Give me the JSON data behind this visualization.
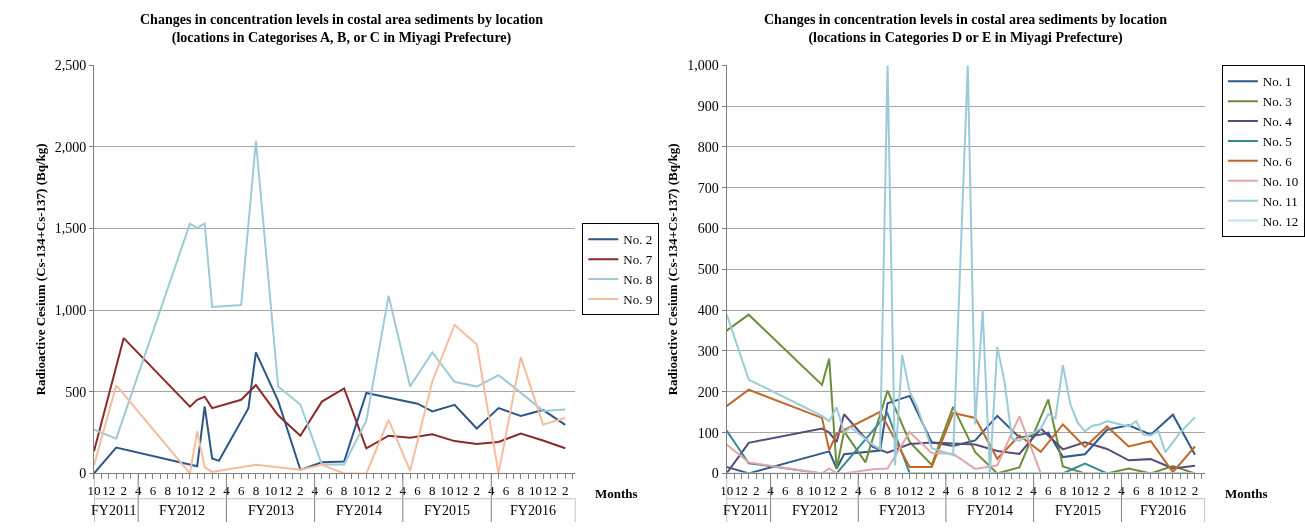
{
  "chart_data": [
    {
      "type": "line",
      "title": "Changes in concentration levels in costal area sediments by location\n(locations in Categorises A, B, or C in Miyagi Prefecture)",
      "xlabel": "Months",
      "ylabel": "Radioactive Cesium (Cs-134+Cs-137) (Bq/kg)",
      "legend": "right",
      "grid": "y",
      "xlim": [
        "2011-10-01",
        "2017-03-15"
      ],
      "ylim": [
        0,
        2500
      ],
      "yticks": [
        0,
        {
          "value": 500,
          "label": "500"
        },
        {
          "value": 1000,
          "label": "1,000"
        },
        {
          "value": 1500,
          "label": "1,500"
        },
        {
          "value": 2000,
          "label": "2,000"
        },
        {
          "value": 2500,
          "label": "2,500"
        }
      ],
      "xticks": [
        {
          "value": "2011-10",
          "label": "10"
        },
        {
          "value": "2011-11",
          "label": null
        },
        {
          "value": "2011-12",
          "label": "12"
        },
        {
          "value": "2012-01",
          "label": null
        },
        {
          "value": "2012-02",
          "label": "2"
        },
        {
          "value": "2012-03",
          "label": null
        },
        {
          "value": "2012-04",
          "label": "4"
        },
        {
          "value": "2012-05",
          "label": null
        },
        {
          "value": "2012-06",
          "label": "6"
        },
        {
          "value": "2012-07",
          "label": null
        },
        {
          "value": "2012-08",
          "label": "8"
        },
        {
          "value": "2012-09",
          "label": null
        },
        {
          "value": "2012-10",
          "label": "10"
        },
        {
          "value": "2012-11",
          "label": null
        },
        {
          "value": "2012-12",
          "label": "12"
        },
        {
          "value": "2013-01",
          "label": null
        },
        {
          "value": "2013-02",
          "label": "2"
        },
        {
          "value": "2013-03",
          "label": null
        },
        {
          "value": "2013-04",
          "label": "4"
        },
        {
          "value": "2013-05",
          "label": null
        },
        {
          "value": "2013-06",
          "label": "6"
        },
        {
          "value": "2013-07",
          "label": null
        },
        {
          "value": "2013-08",
          "label": "8"
        },
        {
          "value": "2013-09",
          "label": null
        },
        {
          "value": "2013-10",
          "label": "10"
        },
        {
          "value": "2013-11",
          "label": null
        },
        {
          "value": "2013-12",
          "label": "12"
        },
        {
          "value": "2014-01",
          "label": null
        },
        {
          "value": "2014-02",
          "label": "2"
        },
        {
          "value": "2014-03",
          "label": null
        },
        {
          "value": "2014-04",
          "label": "4"
        },
        {
          "value": "2014-05",
          "label": null
        },
        {
          "value": "2014-06",
          "label": "6"
        },
        {
          "value": "2014-07",
          "label": null
        },
        {
          "value": "2014-08",
          "label": "8"
        },
        {
          "value": "2014-09",
          "label": null
        },
        {
          "value": "2014-10",
          "label": "10"
        },
        {
          "value": "2014-11",
          "label": null
        },
        {
          "value": "2014-12",
          "label": "12"
        },
        {
          "value": "2015-01",
          "label": null
        },
        {
          "value": "2015-02",
          "label": "2"
        },
        {
          "value": "2015-03",
          "label": null
        },
        {
          "value": "2015-04",
          "label": "4"
        },
        {
          "value": "2015-05",
          "label": null
        },
        {
          "value": "2015-06",
          "label": "6"
        },
        {
          "value": "2015-07",
          "label": null
        },
        {
          "value": "2015-08",
          "label": "8"
        },
        {
          "value": "2015-09",
          "label": null
        },
        {
          "value": "2015-10",
          "label": "10"
        },
        {
          "value": "2015-11",
          "label": null
        },
        {
          "value": "2015-12",
          "label": "12"
        },
        {
          "value": "2016-01",
          "label": null
        },
        {
          "value": "2016-02",
          "label": "2"
        },
        {
          "value": "2016-03",
          "label": null
        },
        {
          "value": "2016-04",
          "label": "4"
        },
        {
          "value": "2016-05",
          "label": null
        },
        {
          "value": "2016-06",
          "label": "6"
        },
        {
          "value": "2016-07",
          "label": null
        },
        {
          "value": "2016-08",
          "label": "8"
        },
        {
          "value": "2016-09",
          "label": null
        },
        {
          "value": "2016-10",
          "label": "10"
        },
        {
          "value": "2016-11",
          "label": null
        },
        {
          "value": "2016-12",
          "label": "12"
        },
        {
          "value": "2017-01",
          "label": null
        },
        {
          "value": "2017-02",
          "label": "2"
        },
        {
          "value": "2017-03",
          "label": null
        }
      ],
      "x2lim": [
        "2011-10-01",
        "2017-03-15"
      ],
      "x2ticks": [
        {
          "value": "2011-10-01",
          "label": null
        },
        {
          "value": "2011-12-20",
          "label": "FY2011"
        },
        {
          "value": "2012-04-01",
          "label": null
        },
        {
          "value": "2012-10-01",
          "label": "FY2012"
        },
        {
          "value": "2013-04-01",
          "label": null
        },
        {
          "value": "2013-10-01",
          "label": "FY2013"
        },
        {
          "value": "2014-04-01",
          "label": null
        },
        {
          "value": "2014-10-01",
          "label": "FY2014"
        },
        {
          "value": "2015-04-01",
          "label": null
        },
        {
          "value": "2015-10-01",
          "label": "FY2015"
        },
        {
          "value": "2016-04-01",
          "label": null
        },
        {
          "value": "2016-09-20",
          "label": "FY2016"
        }
      ],
      "series": [
        {
          "name": "No. 2",
          "color": "#2e5688",
          "x": [
            "2011-10",
            "2012-01",
            "2012-12",
            "2013-01",
            "2013-02",
            "2013-03",
            "2013-07",
            "2013-08",
            "2013-11",
            "2014-02",
            "2014-05",
            "2014-08",
            "2014-11",
            "2015-06",
            "2015-08",
            "2015-11",
            "2016-02",
            "2016-05",
            "2016-08",
            "2016-11",
            "2017-02"
          ],
          "values": [
            0,
            158,
            44,
            411,
            92,
            77,
            400,
            741,
            444,
            22,
            68,
            73,
            493,
            427,
            380,
            420,
            275,
            400,
            352,
            389,
            297
          ]
        },
        {
          "name": "No. 7",
          "color": "#8b2a2a",
          "x": [
            "2011-10",
            "2012-02",
            "2012-11",
            "2012-12",
            "2013-01",
            "2013-02",
            "2013-06",
            "2013-08",
            "2013-11",
            "2014-02",
            "2014-05",
            "2014-08",
            "2014-11",
            "2015-02",
            "2015-05",
            "2015-08",
            "2015-11",
            "2016-02",
            "2016-05",
            "2016-08",
            "2016-11",
            "2017-02"
          ],
          "values": [
            136,
            829,
            409,
            451,
            470,
            400,
            451,
            541,
            356,
            231,
            440,
            521,
            154,
            231,
            218,
            240,
            198,
            180,
            193,
            244,
            202,
            154
          ]
        },
        {
          "name": "No. 8",
          "color": "#9ecad6",
          "x": [
            "2011-10",
            "2012-01",
            "2012-11",
            "2012-12",
            "2013-01",
            "2013-02",
            "2013-06",
            "2013-08",
            "2013-11",
            "2014-02",
            "2014-05",
            "2014-08",
            "2014-11",
            "2015-02",
            "2015-05",
            "2015-08",
            "2015-11",
            "2016-02",
            "2016-05",
            "2016-08",
            "2016-11",
            "2017-02"
          ],
          "values": [
            268,
            213,
            1530,
            1504,
            1530,
            1020,
            1031,
            2038,
            532,
            422,
            55,
            55,
            323,
            1088,
            532,
            741,
            561,
            532,
            602,
            495,
            383,
            391
          ]
        },
        {
          "name": "No. 9",
          "color": "#f5bda0",
          "x": [
            "2011-10",
            "2012-01",
            "2012-11",
            "2012-12",
            "2013-01",
            "2013-02",
            "2013-08",
            "2014-02",
            "2014-05",
            "2014-08",
            "2014-11",
            "2015-02",
            "2015-05",
            "2015-08",
            "2015-11",
            "2016-02",
            "2016-05",
            "2016-08",
            "2016-11",
            "2017-02"
          ],
          "values": [
            48,
            539,
            0,
            257,
            37,
            9,
            53,
            22,
            53,
            0,
            0,
            328,
            15,
            565,
            910,
            789,
            0,
            712,
            299,
            339
          ]
        }
      ]
    },
    {
      "type": "line",
      "title": "Changes in concentration levels in costal area sediments by location\n(locations in Categories D or E in Miyagi Prefecture)",
      "xlabel": "Months",
      "ylabel": "Radioactive Cesium (Cs-134+Cs-137) (Bq/kg)",
      "legend": "top right",
      "grid": "y",
      "xlim": [
        "2011-10-01",
        "2017-03-15"
      ],
      "ylim": [
        0,
        1000
      ],
      "yticks": [
        0,
        100,
        200,
        300,
        400,
        500,
        600,
        700,
        800,
        900,
        {
          "value": 1000,
          "label": "1,000"
        }
      ],
      "xticks": [
        {
          "value": "2011-10",
          "label": "10"
        },
        {
          "value": "2011-11",
          "label": null
        },
        {
          "value": "2011-12",
          "label": "12"
        },
        {
          "value": "2012-01",
          "label": null
        },
        {
          "value": "2012-02",
          "label": "2"
        },
        {
          "value": "2012-03",
          "label": null
        },
        {
          "value": "2012-04",
          "label": "4"
        },
        {
          "value": "2012-05",
          "label": null
        },
        {
          "value": "2012-06",
          "label": "6"
        },
        {
          "value": "2012-07",
          "label": null
        },
        {
          "value": "2012-08",
          "label": "8"
        },
        {
          "value": "2012-09",
          "label": null
        },
        {
          "value": "2012-10",
          "label": "10"
        },
        {
          "value": "2012-11",
          "label": null
        },
        {
          "value": "2012-12",
          "label": "12"
        },
        {
          "value": "2013-01",
          "label": null
        },
        {
          "value": "2013-02",
          "label": "2"
        },
        {
          "value": "2013-03",
          "label": null
        },
        {
          "value": "2013-04",
          "label": "4"
        },
        {
          "value": "2013-05",
          "label": null
        },
        {
          "value": "2013-06",
          "label": "6"
        },
        {
          "value": "2013-07",
          "label": null
        },
        {
          "value": "2013-08",
          "label": "8"
        },
        {
          "value": "2013-09",
          "label": null
        },
        {
          "value": "2013-10",
          "label": "10"
        },
        {
          "value": "2013-11",
          "label": null
        },
        {
          "value": "2013-12",
          "label": "12"
        },
        {
          "value": "2014-01",
          "label": null
        },
        {
          "value": "2014-02",
          "label": "2"
        },
        {
          "value": "2014-03",
          "label": null
        },
        {
          "value": "2014-04",
          "label": "4"
        },
        {
          "value": "2014-05",
          "label": null
        },
        {
          "value": "2014-06",
          "label": "6"
        },
        {
          "value": "2014-07",
          "label": null
        },
        {
          "value": "2014-08",
          "label": "8"
        },
        {
          "value": "2014-09",
          "label": null
        },
        {
          "value": "2014-10",
          "label": "10"
        },
        {
          "value": "2014-11",
          "label": null
        },
        {
          "value": "2014-12",
          "label": "12"
        },
        {
          "value": "2015-01",
          "label": null
        },
        {
          "value": "2015-02",
          "label": "2"
        },
        {
          "value": "2015-03",
          "label": null
        },
        {
          "value": "2015-04",
          "label": "4"
        },
        {
          "value": "2015-05",
          "label": null
        },
        {
          "value": "2015-06",
          "label": "6"
        },
        {
          "value": "2015-07",
          "label": null
        },
        {
          "value": "2015-08",
          "label": "8"
        },
        {
          "value": "2015-09",
          "label": null
        },
        {
          "value": "2015-10",
          "label": "10"
        },
        {
          "value": "2015-11",
          "label": null
        },
        {
          "value": "2015-12",
          "label": "12"
        },
        {
          "value": "2016-01",
          "label": null
        },
        {
          "value": "2016-02",
          "label": "2"
        },
        {
          "value": "2016-03",
          "label": null
        },
        {
          "value": "2016-04",
          "label": "4"
        },
        {
          "value": "2016-05",
          "label": null
        },
        {
          "value": "2016-06",
          "label": "6"
        },
        {
          "value": "2016-07",
          "label": null
        },
        {
          "value": "2016-08",
          "label": "8"
        },
        {
          "value": "2016-09",
          "label": null
        },
        {
          "value": "2016-10",
          "label": "10"
        },
        {
          "value": "2016-11",
          "label": null
        },
        {
          "value": "2016-12",
          "label": "12"
        },
        {
          "value": "2017-01",
          "label": null
        },
        {
          "value": "2017-02",
          "label": "2"
        },
        {
          "value": "2017-03",
          "label": null
        }
      ],
      "x2lim": [
        "2011-10-01",
        "2017-03-15"
      ],
      "x2ticks": [
        {
          "value": "2011-10-01",
          "label": null
        },
        {
          "value": "2011-12-20",
          "label": "FY2011"
        },
        {
          "value": "2012-04-01",
          "label": null
        },
        {
          "value": "2012-10-01",
          "label": "FY2012"
        },
        {
          "value": "2013-04-01",
          "label": null
        },
        {
          "value": "2013-10-01",
          "label": "FY2013"
        },
        {
          "value": "2014-04-01",
          "label": null
        },
        {
          "value": "2014-10-01",
          "label": "FY2014"
        },
        {
          "value": "2015-04-01",
          "label": null
        },
        {
          "value": "2015-10-01",
          "label": "FY2015"
        },
        {
          "value": "2016-04-01",
          "label": null
        },
        {
          "value": "2016-09-20",
          "label": "FY2016"
        }
      ],
      "series": [
        {
          "name": "No. 1",
          "color": "#2f5a8a",
          "x": [
            "2011-10",
            "2012-01",
            "2012-12",
            "2013-01",
            "2013-02",
            "2013-07",
            "2013-08",
            "2013-11",
            "2014-02",
            "2014-05",
            "2014-08",
            "2014-11",
            "2015-02",
            "2015-05",
            "2015-06",
            "2015-08",
            "2015-11",
            "2016-02",
            "2016-05",
            "2016-08",
            "2016-11",
            "2017-02"
          ],
          "values": [
            16,
            0,
            54,
            12,
            47,
            56,
            172,
            190,
            76,
            67,
            81,
            141,
            88,
            95,
            100,
            40,
            47,
            107,
            118,
            95,
            144,
            46
          ]
        },
        {
          "name": "No. 3",
          "color": "#6b8e3a",
          "x": [
            "2011-10",
            "2012-01",
            "2012-11",
            "2012-12",
            "2013-01",
            "2013-02",
            "2013-05",
            "2013-08",
            "2013-11",
            "2014-02",
            "2014-05",
            "2014-08",
            "2014-11",
            "2015-02",
            "2015-06",
            "2015-08",
            "2015-11",
            "2016-02",
            "2016-05",
            "2016-08",
            "2016-11",
            "2017-02"
          ],
          "values": [
            350,
            389,
            217,
            281,
            12,
            103,
            27,
            203,
            77,
            21,
            163,
            52,
            0,
            15,
            181,
            17,
            0,
            0,
            12,
            0,
            18,
            0
          ]
        },
        {
          "name": "No. 4",
          "color": "#5b4a7a",
          "x": [
            "2011-10",
            "2012-01",
            "2012-11",
            "2012-12",
            "2013-01",
            "2013-02",
            "2013-06",
            "2013-08",
            "2013-11",
            "2014-02",
            "2014-05",
            "2014-08",
            "2014-11",
            "2015-02",
            "2015-05",
            "2015-08",
            "2015-11",
            "2016-02",
            "2016-05",
            "2016-08",
            "2016-11",
            "2017-02"
          ],
          "values": [
            0,
            75,
            110,
            100,
            77,
            145,
            65,
            51,
            72,
            76,
            73,
            71,
            55,
            48,
            110,
            59,
            76,
            60,
            32,
            35,
            12,
            19
          ]
        },
        {
          "name": "No. 5",
          "color": "#3a8a95",
          "x": [
            "2011-10",
            "2012-01",
            "2012-11",
            "2012-12",
            "2013-01",
            "2013-08",
            "2013-11",
            "2014-02",
            "2014-05",
            "2014-08",
            "2014-11",
            "2015-02",
            "2015-05",
            "2015-08",
            "2015-11",
            "2016-02",
            "2016-05",
            "2016-08",
            "2016-11",
            "2017-02"
          ],
          "values": [
            105,
            25,
            0,
            0,
            0,
            147,
            0,
            0,
            0,
            0,
            0,
            0,
            0,
            0,
            24,
            0,
            0,
            0,
            0,
            0
          ]
        },
        {
          "name": "No. 6",
          "color": "#c0692a",
          "x": [
            "2011-10",
            "2012-01",
            "2012-11",
            "2012-12",
            "2013-01",
            "2013-07",
            "2013-11",
            "2014-02",
            "2014-05",
            "2014-08",
            "2014-11",
            "2015-02",
            "2015-05",
            "2015-08",
            "2015-11",
            "2016-02",
            "2016-05",
            "2016-08",
            "2016-11",
            "2017-02"
          ],
          "values": [
            165,
            205,
            136,
            57,
            97,
            151,
            16,
            16,
            148,
            136,
            36,
            93,
            53,
            120,
            65,
            115,
            66,
            79,
            3,
            66
          ]
        },
        {
          "name": "No. 10",
          "color": "#e0a8a8",
          "x": [
            "2011-10",
            "2012-01",
            "2012-11",
            "2012-12",
            "2013-01",
            "2013-02",
            "2013-06",
            "2013-08",
            "2013-11",
            "2014-02",
            "2014-05",
            "2014-08",
            "2014-11",
            "2015-02",
            "2015-05",
            "2015-08",
            "2015-11",
            "2016-02",
            "2016-05",
            "2016-08",
            "2016-11",
            "2017-02"
          ],
          "values": [
            71,
            27,
            0,
            12,
            0,
            0,
            10,
            12,
            101,
            50,
            48,
            11,
            20,
            140,
            0,
            0,
            0,
            0,
            0,
            0,
            0,
            0
          ]
        },
        {
          "name": "No. 11",
          "color": "#9ccbd8",
          "x": [
            "2011-10",
            "2012-01",
            "2012-11",
            "2012-12",
            "2013-01",
            "2013-02",
            "2013-03",
            "2013-06",
            "2013-07",
            "2013-08",
            "2013-09",
            "2013-10",
            "2013-11",
            "2013-12",
            "2014-02",
            "2014-05",
            "2014-07",
            "2014-08",
            "2014-09",
            "2014-10",
            "2014-11",
            "2014-12",
            "2015-01",
            "2015-02",
            "2015-05",
            "2015-06",
            "2015-07",
            "2015-08",
            "2015-09",
            "2015-10",
            "2015-11",
            "2015-12",
            "2016-01",
            "2016-02",
            "2016-05",
            "2016-06",
            "2016-07",
            "2016-08",
            "2016-09",
            "2016-10",
            "2016-12",
            "2017-02"
          ],
          "values": [
            390,
            230,
            141,
            128,
            162,
            100,
            113,
            70,
            60,
            1000,
            20,
            290,
            200,
            165,
            62,
            45,
            1000,
            120,
            400,
            0,
            310,
            225,
            85,
            80,
            110,
            145,
            135,
            265,
            170,
            125,
            103,
            117,
            120,
            128,
            115,
            128,
            95,
            93,
            105,
            52,
            100,
            138
          ]
        },
        {
          "name": "No. 12",
          "color": "#c5e0ea",
          "x": [
            "2011-10",
            "2012-01",
            "2012-11",
            "2012-12",
            "2013-01",
            "2013-08",
            "2013-11",
            "2014-02",
            "2014-05",
            "2014-08",
            "2014-11",
            "2015-02",
            "2015-05",
            "2015-08",
            "2015-11",
            "2016-02",
            "2016-05",
            "2016-08",
            "2016-11",
            "2017-02"
          ],
          "values": [
            0,
            0,
            0,
            0,
            0,
            0,
            0,
            0,
            0,
            0,
            0,
            0,
            0,
            0,
            0,
            0,
            0,
            0,
            0,
            0
          ]
        }
      ]
    }
  ]
}
